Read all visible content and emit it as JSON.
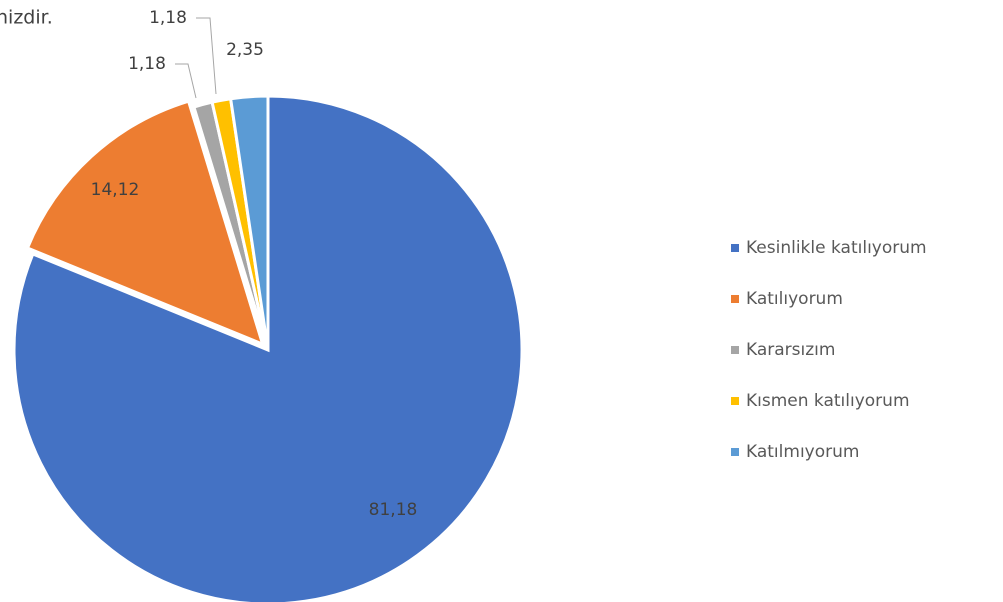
{
  "chart_data": {
    "type": "pie",
    "title": "nizdir.",
    "categories": [
      "Kesinlikle katılıyorum",
      "Katılıyorum",
      "Kararsızım",
      "Kısmen katılıyorum",
      "Katılmıyorum"
    ],
    "values": [
      81.18,
      14.12,
      1.18,
      1.18,
      2.35
    ],
    "value_labels": [
      "81,18",
      "14,12",
      "1,18",
      "1,18",
      "2,35"
    ],
    "colors": [
      "#4472c4",
      "#ed7d31",
      "#a5a5a5",
      "#ffc000",
      "#5b9bd5"
    ],
    "legend": "right"
  }
}
